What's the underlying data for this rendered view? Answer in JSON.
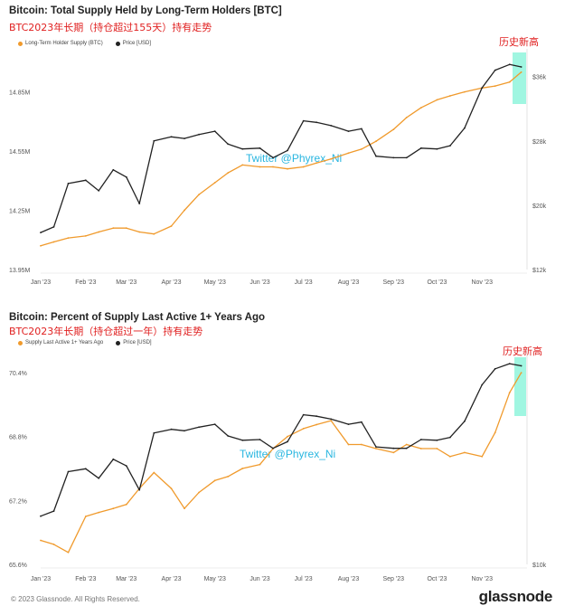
{
  "chart_data": [
    {
      "type": "line",
      "title": "Bitcoin: Total Supply Held by Long-Term Holders [BTC]",
      "subtitle": "BTC2023年长期（持仓超过155天）持有走势",
      "annotation": "历史新高",
      "watermark": "Twitter @Phyrex_Ni",
      "legend_placement": "top-left",
      "x_ticks": [
        "Jan '23",
        "Feb '23",
        "Mar '23",
        "Apr '23",
        "May '23",
        "Jun '23",
        "Jul '23",
        "Aug '23",
        "Sep '23",
        "Oct '23",
        "Nov '23"
      ],
      "y_left_ticks": [
        "13.95M",
        "14.25M",
        "14.55M",
        "14.85M"
      ],
      "y_left_lim": [
        13.95,
        15.05
      ],
      "y_right_ticks": [
        "$12k",
        "$20k",
        "$28k",
        "$36k"
      ],
      "y_right_lim": [
        12,
        39
      ],
      "grid": false,
      "colors": {
        "supply": "#f09a2c",
        "price": "#222222",
        "highlight": "#8ff5dc"
      },
      "series": [
        {
          "name": "Long-Term Holder Supply (BTC)",
          "axis": "left",
          "unit": "M BTC",
          "x": [
            "2023-01-01",
            "2023-01-10",
            "2023-01-20",
            "2023-02-01",
            "2023-02-10",
            "2023-02-20",
            "2023-03-01",
            "2023-03-10",
            "2023-03-20",
            "2023-04-01",
            "2023-04-10",
            "2023-04-20",
            "2023-05-01",
            "2023-05-10",
            "2023-05-20",
            "2023-06-01",
            "2023-06-10",
            "2023-06-20",
            "2023-07-01",
            "2023-07-10",
            "2023-07-20",
            "2023-08-01",
            "2023-08-10",
            "2023-08-20",
            "2023-09-01",
            "2023-09-10",
            "2023-09-20",
            "2023-10-01",
            "2023-10-10",
            "2023-10-20",
            "2023-11-01",
            "2023-11-10",
            "2023-11-20",
            "2023-11-28"
          ],
          "values": [
            14.07,
            14.09,
            14.11,
            14.12,
            14.14,
            14.16,
            14.16,
            14.14,
            14.13,
            14.17,
            14.25,
            14.33,
            14.39,
            14.44,
            14.48,
            14.47,
            14.47,
            14.46,
            14.47,
            14.49,
            14.51,
            14.54,
            14.56,
            14.6,
            14.66,
            14.72,
            14.77,
            14.81,
            14.83,
            14.85,
            14.87,
            14.88,
            14.9,
            14.95
          ]
        },
        {
          "name": "Price [USD]",
          "axis": "right",
          "unit": "USD thousands",
          "x": [
            "2023-01-01",
            "2023-01-10",
            "2023-01-20",
            "2023-02-01",
            "2023-02-10",
            "2023-02-20",
            "2023-03-01",
            "2023-03-10",
            "2023-03-20",
            "2023-04-01",
            "2023-04-10",
            "2023-04-20",
            "2023-05-01",
            "2023-05-10",
            "2023-05-20",
            "2023-06-01",
            "2023-06-10",
            "2023-06-20",
            "2023-07-01",
            "2023-07-10",
            "2023-07-20",
            "2023-08-01",
            "2023-08-10",
            "2023-08-20",
            "2023-09-01",
            "2023-09-10",
            "2023-09-20",
            "2023-10-01",
            "2023-10-10",
            "2023-10-20",
            "2023-11-01",
            "2023-11-10",
            "2023-11-20",
            "2023-11-28"
          ],
          "values": [
            16.6,
            17.3,
            22.7,
            23.1,
            21.8,
            24.4,
            23.5,
            20.2,
            28.0,
            28.5,
            28.3,
            28.8,
            29.2,
            27.6,
            27.0,
            27.1,
            25.9,
            26.8,
            30.5,
            30.3,
            29.9,
            29.2,
            29.5,
            26.1,
            25.9,
            25.9,
            27.1,
            27.0,
            27.4,
            29.6,
            34.6,
            36.8,
            37.5,
            37.2
          ]
        }
      ]
    },
    {
      "type": "line",
      "title": "Bitcoin: Percent of Supply Last Active 1+ Years Ago",
      "subtitle": "BTC2023年长期（持仓超过一年）持有走势",
      "annotation": "历史新高",
      "watermark": "Twitter @Phyrex_Ni",
      "legend_placement": "top-left",
      "x_ticks": [
        "Jan '23",
        "Feb '23",
        "Mar '23",
        "Apr '23",
        "May '23",
        "Jun '23",
        "Jul '23",
        "Aug '23",
        "Sep '23",
        "Oct '23",
        "Nov '23"
      ],
      "y_left_ticks": [
        "65.6%",
        "67.2%",
        "68.8%",
        "70.4%"
      ],
      "y_left_lim": [
        65.6,
        70.9
      ],
      "y_right_ticks": [
        "$10k"
      ],
      "y_right_lim": [
        10,
        39
      ],
      "grid": false,
      "colors": {
        "supply": "#f09a2c",
        "price": "#222222",
        "highlight": "#8ff5dc"
      },
      "series": [
        {
          "name": "Supply Last Active 1+ Years Ago",
          "axis": "left",
          "unit": "%",
          "x": [
            "2023-01-01",
            "2023-01-10",
            "2023-01-20",
            "2023-02-01",
            "2023-02-10",
            "2023-02-20",
            "2023-03-01",
            "2023-03-10",
            "2023-03-20",
            "2023-04-01",
            "2023-04-10",
            "2023-04-20",
            "2023-05-01",
            "2023-05-10",
            "2023-05-20",
            "2023-06-01",
            "2023-06-10",
            "2023-06-20",
            "2023-07-01",
            "2023-07-10",
            "2023-07-20",
            "2023-08-01",
            "2023-08-10",
            "2023-08-20",
            "2023-09-01",
            "2023-09-10",
            "2023-09-20",
            "2023-10-01",
            "2023-10-10",
            "2023-10-20",
            "2023-11-01",
            "2023-11-10",
            "2023-11-20",
            "2023-11-28"
          ],
          "values": [
            66.2,
            66.1,
            65.9,
            66.8,
            66.9,
            67.0,
            67.1,
            67.5,
            67.9,
            67.5,
            67.0,
            67.4,
            67.7,
            67.8,
            68.0,
            68.1,
            68.5,
            68.8,
            69.0,
            69.1,
            69.2,
            68.6,
            68.6,
            68.5,
            68.4,
            68.6,
            68.5,
            68.5,
            68.3,
            68.4,
            68.3,
            68.9,
            69.9,
            70.4
          ]
        },
        {
          "name": "Price [USD]",
          "axis": "right",
          "unit": "USD thousands",
          "x": [
            "2023-01-01",
            "2023-01-10",
            "2023-01-20",
            "2023-02-01",
            "2023-02-10",
            "2023-02-20",
            "2023-03-01",
            "2023-03-10",
            "2023-03-20",
            "2023-04-01",
            "2023-04-10",
            "2023-04-20",
            "2023-05-01",
            "2023-05-10",
            "2023-05-20",
            "2023-06-01",
            "2023-06-10",
            "2023-06-20",
            "2023-07-01",
            "2023-07-10",
            "2023-07-20",
            "2023-08-01",
            "2023-08-10",
            "2023-08-20",
            "2023-09-01",
            "2023-09-10",
            "2023-09-20",
            "2023-10-01",
            "2023-10-10",
            "2023-10-20",
            "2023-11-01",
            "2023-11-10",
            "2023-11-20",
            "2023-11-28"
          ],
          "values": [
            16.6,
            17.3,
            22.7,
            23.1,
            21.8,
            24.4,
            23.5,
            20.2,
            28.0,
            28.5,
            28.3,
            28.8,
            29.2,
            27.6,
            27.0,
            27.1,
            25.9,
            26.8,
            30.5,
            30.3,
            29.9,
            29.2,
            29.5,
            26.1,
            25.9,
            25.9,
            27.1,
            27.0,
            27.4,
            29.6,
            34.6,
            36.8,
            37.5,
            37.2
          ]
        }
      ]
    }
  ],
  "footer": {
    "copyright": "© 2023 Glassnode. All Rights Reserved.",
    "logo": "glassnode"
  }
}
